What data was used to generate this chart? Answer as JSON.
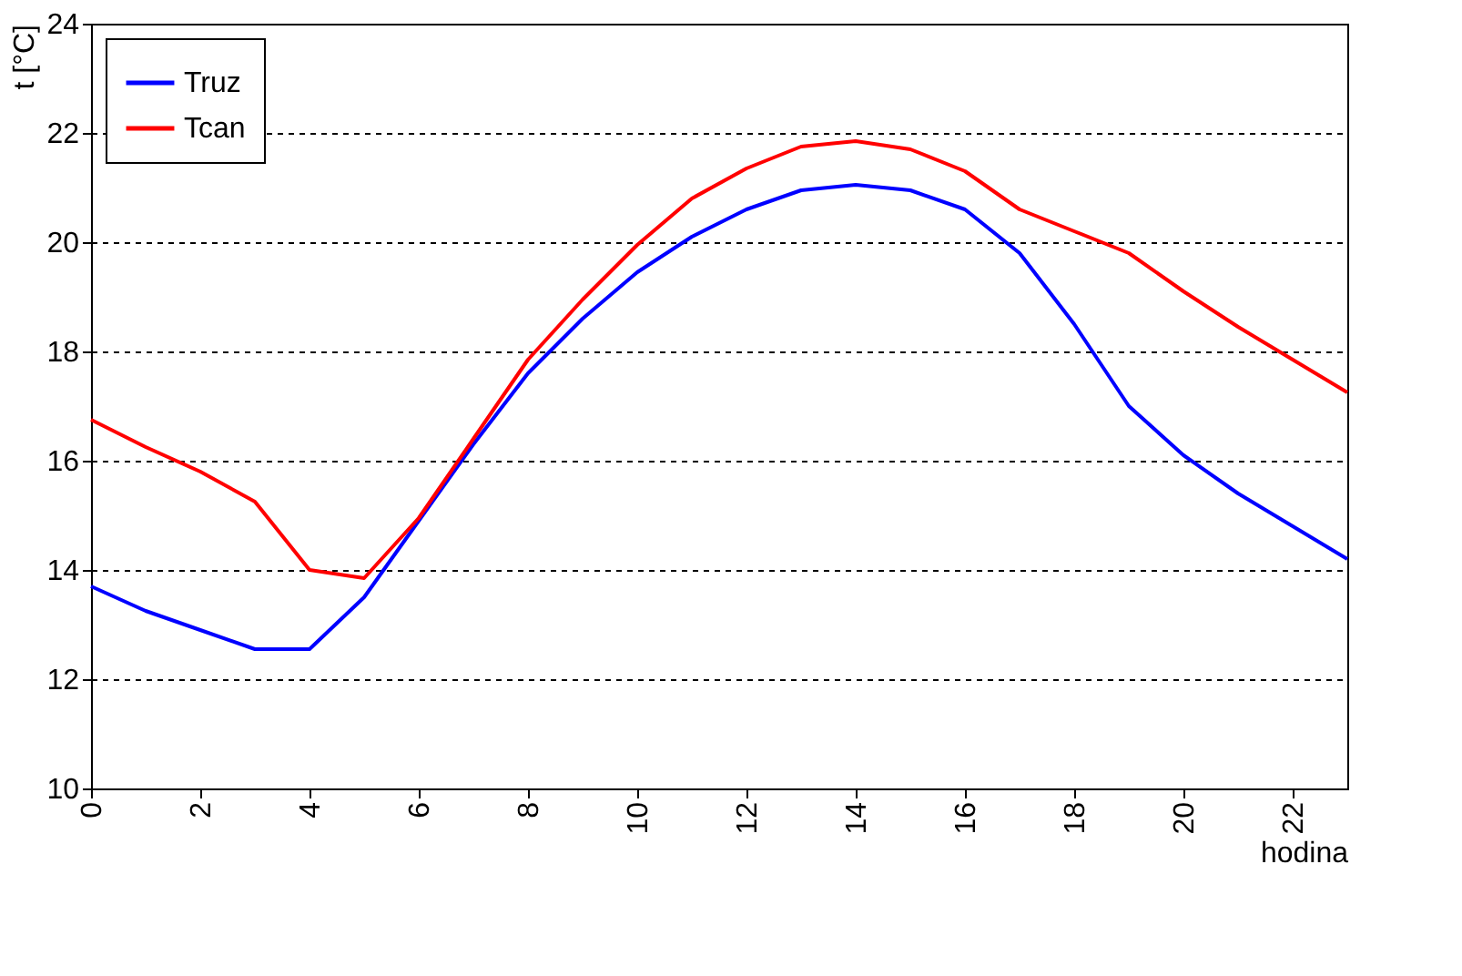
{
  "chart_data": {
    "type": "line",
    "xlabel": "hodina",
    "ylabel": "t [°C]",
    "x": [
      0,
      1,
      2,
      3,
      4,
      5,
      6,
      7,
      8,
      9,
      10,
      11,
      12,
      13,
      14,
      15,
      16,
      17,
      18,
      19,
      20,
      21,
      22,
      23
    ],
    "series": [
      {
        "name": "Truz",
        "color": "#0000ff",
        "values": [
          13.7,
          13.25,
          12.9,
          12.55,
          12.55,
          13.5,
          14.9,
          16.3,
          17.6,
          18.6,
          19.45,
          20.1,
          20.6,
          20.95,
          21.05,
          20.95,
          20.6,
          19.8,
          18.5,
          17.0,
          16.1,
          15.4,
          14.8,
          14.2
        ]
      },
      {
        "name": "Tcan",
        "color": "#ff0000",
        "values": [
          16.75,
          16.25,
          15.8,
          15.25,
          14.0,
          13.85,
          14.95,
          16.4,
          17.85,
          18.95,
          19.95,
          20.8,
          21.35,
          21.75,
          21.85,
          21.7,
          21.3,
          20.6,
          20.2,
          19.8,
          19.1,
          18.45,
          17.85,
          17.25
        ]
      }
    ],
    "xlim": [
      0,
      23
    ],
    "xticks": [
      0,
      2,
      4,
      6,
      8,
      10,
      12,
      14,
      16,
      18,
      20,
      22
    ],
    "ylim": [
      10,
      24
    ],
    "yticks": [
      10,
      12,
      14,
      16,
      18,
      20,
      22,
      24
    ],
    "grid": "y",
    "legend": "top left",
    "marker": "none",
    "line_style": "solid"
  }
}
